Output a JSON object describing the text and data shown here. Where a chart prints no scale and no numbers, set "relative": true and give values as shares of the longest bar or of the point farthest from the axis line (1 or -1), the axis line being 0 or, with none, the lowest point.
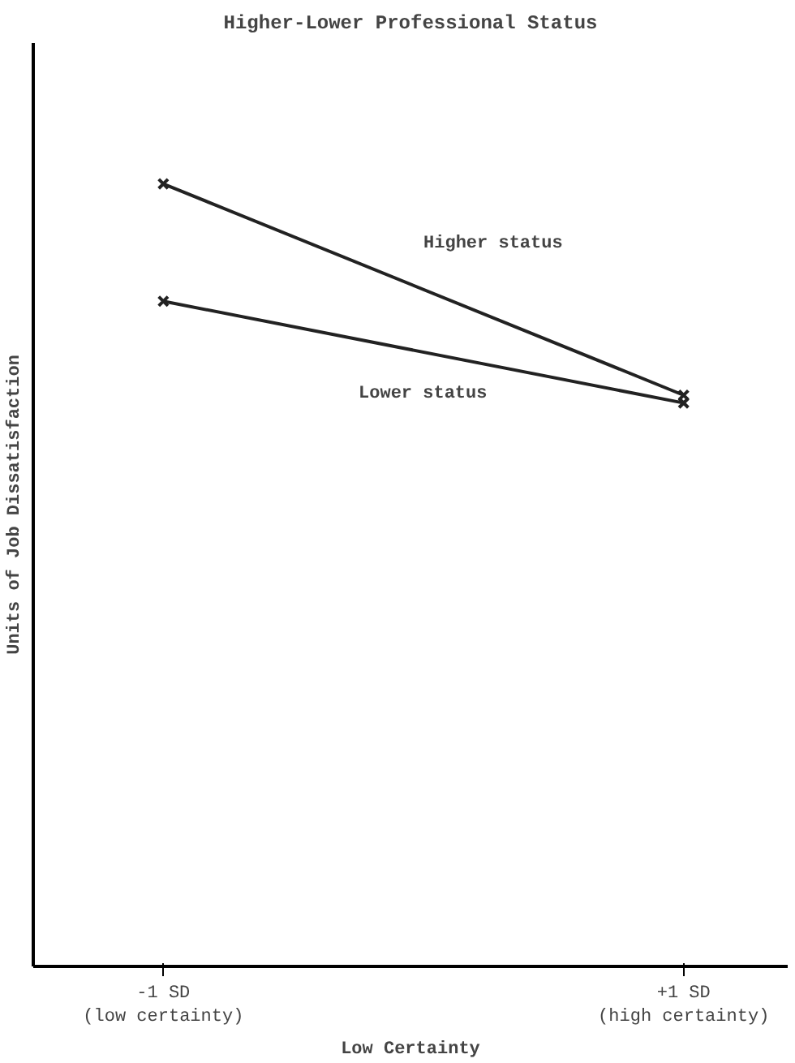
{
  "chart_data": {
    "type": "line",
    "title": "Higher-Lower Professional Status",
    "xlabel": "Low Certainty",
    "ylabel": "Units of Job Dissatisfaction",
    "categories": [
      "-1 SD\n(low certainty)",
      "+1 SD\n(high certainty)"
    ],
    "relative": true,
    "marker": "cross",
    "legend": false,
    "grid": false,
    "series": [
      {
        "name": "Higher status",
        "color": "#222222",
        "values": [
          1,
          0.73
        ]
      },
      {
        "name": "Lower status",
        "color": "#222222",
        "values": [
          0.85,
          0.72
        ]
      }
    ]
  }
}
